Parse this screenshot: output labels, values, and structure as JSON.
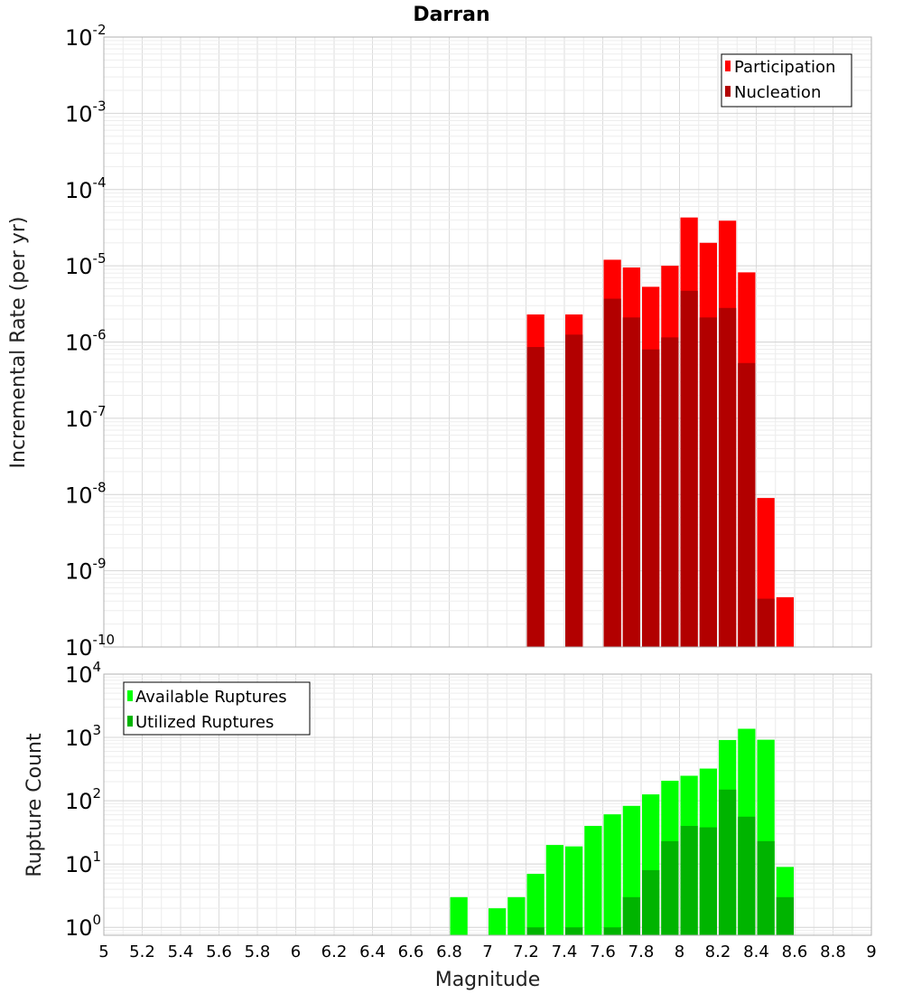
{
  "chart_data": [
    {
      "type": "bar",
      "title": "Darran",
      "ylabel": "Incremental Rate (per yr)",
      "xlabel": "",
      "yscale": "log",
      "ylim": [
        1e-10,
        0.01
      ],
      "xlim": [
        5,
        9
      ],
      "bin_width": 0.1,
      "grid": true,
      "legend_position": "top-right",
      "series": [
        {
          "name": "Participation",
          "color": "#ff0000",
          "x": [
            7.25,
            7.45,
            7.65,
            7.75,
            7.85,
            7.95,
            8.05,
            8.15,
            8.25,
            8.35,
            8.45,
            8.55
          ],
          "values": [
            2.3e-06,
            2.3e-06,
            1.2e-05,
            9.5e-06,
            5.3e-06,
            1e-05,
            4.3e-05,
            2e-05,
            3.9e-05,
            8.2e-06,
            9e-09,
            4.5e-10
          ]
        },
        {
          "name": "Nucleation",
          "color": "#b20000",
          "x": [
            7.25,
            7.45,
            7.65,
            7.75,
            7.85,
            7.95,
            8.05,
            8.15,
            8.25,
            8.35,
            8.45
          ],
          "values": [
            8.6e-07,
            1.25e-06,
            3.7e-06,
            2.1e-06,
            8e-07,
            1.15e-06,
            4.7e-06,
            2.1e-06,
            2.8e-06,
            5.3e-07,
            4.3e-10
          ]
        }
      ]
    },
    {
      "type": "bar",
      "title": "",
      "ylabel": "Rupture Count",
      "xlabel": "Magnitude",
      "yscale": "log",
      "ylim": [
        0.75,
        10000
      ],
      "xlim": [
        5,
        9
      ],
      "bin_width": 0.1,
      "grid": true,
      "legend_position": "top-left",
      "x_ticks": [
        "5",
        "5.2",
        "5.4",
        "5.6",
        "5.8",
        "6",
        "6.2",
        "6.4",
        "6.6",
        "6.8",
        "7",
        "7.2",
        "7.4",
        "7.6",
        "7.8",
        "8",
        "8.2",
        "8.4",
        "8.6",
        "8.8",
        "9"
      ],
      "series": [
        {
          "name": "Available Ruptures",
          "color": "#00ff00",
          "x": [
            6.85,
            7.05,
            7.15,
            7.25,
            7.35,
            7.45,
            7.55,
            7.65,
            7.75,
            7.85,
            7.95,
            8.05,
            8.15,
            8.25,
            8.35,
            8.45,
            8.55
          ],
          "values": [
            3,
            2,
            3,
            7,
            20,
            19,
            40,
            61,
            83,
            126,
            207,
            248,
            322,
            910,
            1370,
            920,
            9
          ]
        },
        {
          "name": "Utilized Ruptures",
          "color": "#00b400",
          "x": [
            7.25,
            7.45,
            7.65,
            7.75,
            7.85,
            7.95,
            8.05,
            8.15,
            8.25,
            8.35,
            8.45,
            8.55
          ],
          "values": [
            1,
            1,
            1,
            3,
            8,
            23,
            40,
            38,
            150,
            56,
            23,
            3
          ]
        }
      ]
    }
  ],
  "top_y_ticks": [
    {
      "base": "10",
      "exp": "-2"
    },
    {
      "base": "10",
      "exp": "-3"
    },
    {
      "base": "10",
      "exp": "-4"
    },
    {
      "base": "10",
      "exp": "-5"
    },
    {
      "base": "10",
      "exp": "-6"
    },
    {
      "base": "10",
      "exp": "-7"
    },
    {
      "base": "10",
      "exp": "-8"
    },
    {
      "base": "10",
      "exp": "-9"
    },
    {
      "base": "10",
      "exp": "-10"
    }
  ],
  "bottom_y_ticks": [
    {
      "base": "10",
      "exp": "4"
    },
    {
      "base": "10",
      "exp": "3"
    },
    {
      "base": "10",
      "exp": "2"
    },
    {
      "base": "10",
      "exp": "1"
    },
    {
      "base": "10",
      "exp": "0"
    }
  ]
}
